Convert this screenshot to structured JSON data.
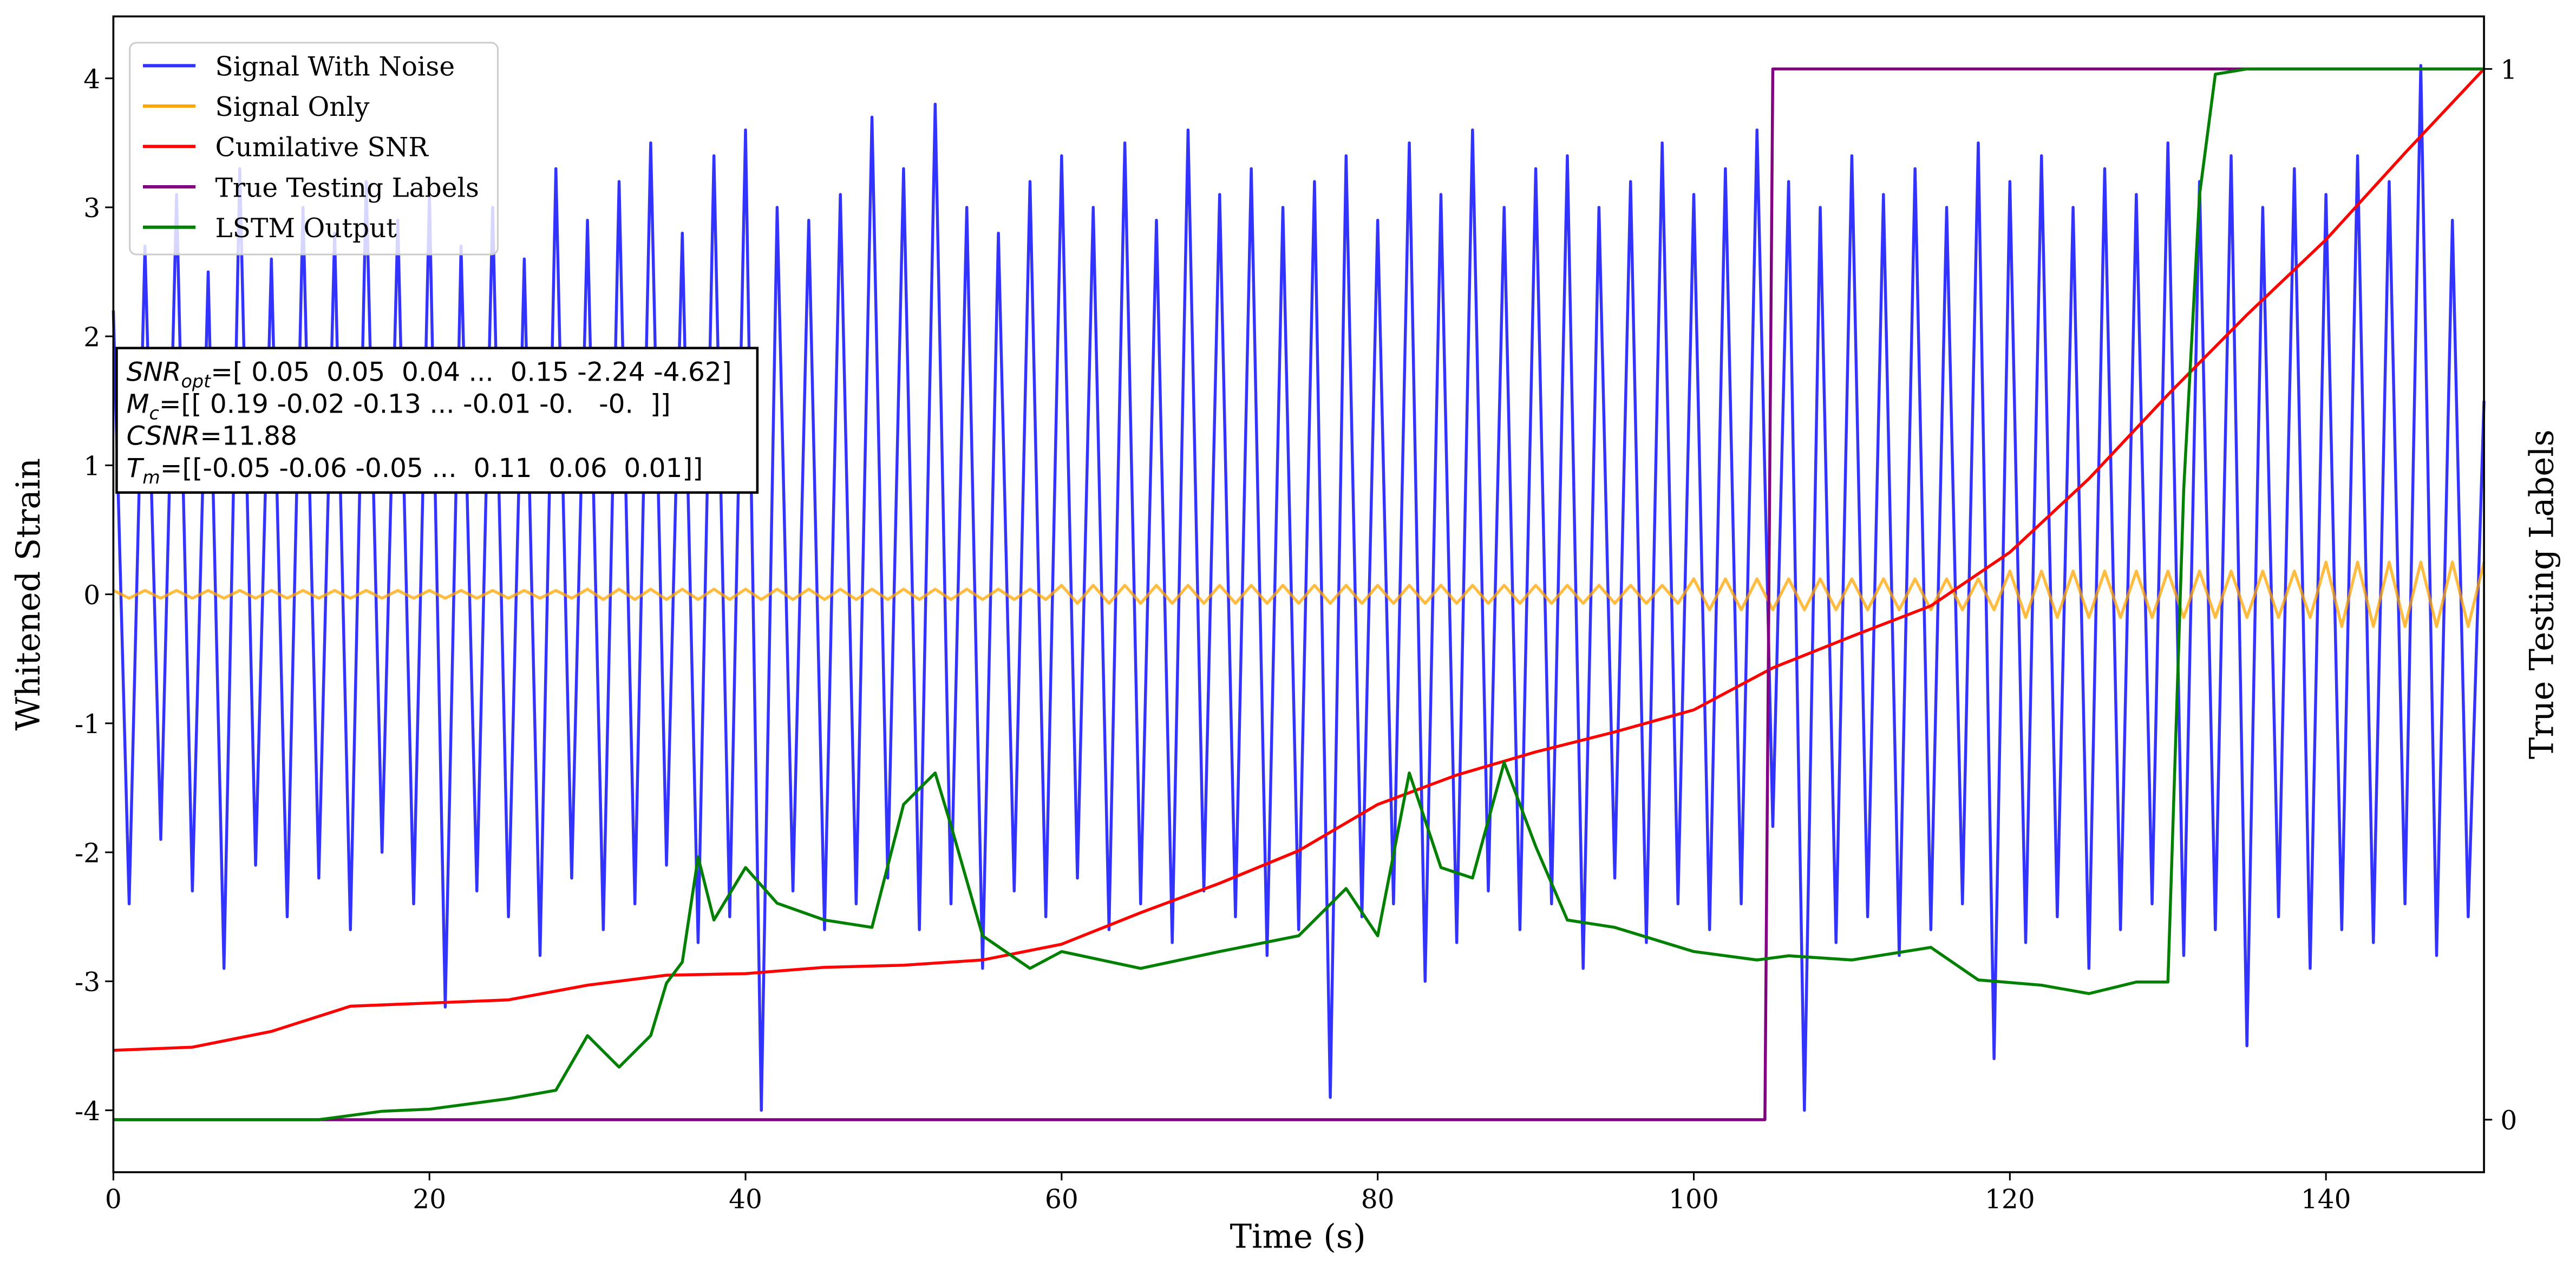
{
  "chart_data": {
    "type": "line",
    "xlabel": "Time (s)",
    "ylabel": "Whitened Strain",
    "y2label": "True Testing Labels",
    "xlim": [
      0,
      150
    ],
    "ylim": [
      -4.48,
      4.48
    ],
    "y2lim": [
      -0.05,
      1.05
    ],
    "xticks": [
      0,
      20,
      40,
      60,
      80,
      100,
      120,
      140
    ],
    "yticks": [
      -4,
      -3,
      -2,
      -1,
      0,
      1,
      2,
      3,
      4
    ],
    "y2ticks": [
      0,
      1
    ],
    "legend": "upper left",
    "series": [
      {
        "name": "Signal With Noise",
        "color": "#3333ff",
        "x": [
          0,
          1,
          2,
          3,
          4,
          5,
          6,
          7,
          8,
          9,
          10,
          11,
          12,
          13,
          14,
          15,
          16,
          17,
          18,
          19,
          20,
          21,
          22,
          23,
          24,
          25,
          26,
          27,
          28,
          29,
          30,
          31,
          32,
          33,
          34,
          35,
          36,
          37,
          38,
          39,
          40,
          41,
          42,
          43,
          44,
          45,
          46,
          47,
          48,
          49,
          50,
          51,
          52,
          53,
          54,
          55,
          56,
          57,
          58,
          59,
          60,
          61,
          62,
          63,
          64,
          65,
          66,
          67,
          68,
          69,
          70,
          71,
          72,
          73,
          74,
          75,
          76,
          77,
          78,
          79,
          80,
          81,
          82,
          83,
          84,
          85,
          86,
          87,
          88,
          89,
          90,
          91,
          92,
          93,
          94,
          95,
          96,
          97,
          98,
          99,
          100,
          101,
          102,
          103,
          104,
          105,
          106,
          107,
          108,
          109,
          110,
          111,
          112,
          113,
          114,
          115,
          116,
          117,
          118,
          119,
          120,
          121,
          122,
          123,
          124,
          125,
          126,
          127,
          128,
          129,
          130,
          131,
          132,
          133,
          134,
          135,
          136,
          137,
          138,
          139,
          140,
          141,
          142,
          143,
          144,
          145,
          146,
          147,
          148,
          149,
          150
        ],
        "values": [
          2.2,
          -2.4,
          2.7,
          -1.9,
          3.1,
          -2.3,
          2.5,
          -2.9,
          3.3,
          -2.1,
          2.6,
          -2.5,
          3.0,
          -2.2,
          2.8,
          -2.6,
          3.2,
          -2.0,
          2.9,
          -2.4,
          3.1,
          -3.2,
          2.7,
          -2.3,
          3.0,
          -2.5,
          2.6,
          -2.8,
          3.3,
          -2.2,
          2.9,
          -2.6,
          3.2,
          -2.4,
          3.5,
          -2.1,
          2.8,
          -2.7,
          3.4,
          -2.5,
          3.6,
          -4.0,
          3.0,
          -2.3,
          2.9,
          -2.6,
          3.1,
          -2.4,
          3.7,
          -2.2,
          3.3,
          -2.6,
          3.8,
          -2.4,
          3.0,
          -2.9,
          2.8,
          -2.3,
          3.2,
          -2.5,
          3.4,
          -2.2,
          3.0,
          -2.6,
          3.5,
          -2.4,
          2.9,
          -2.7,
          3.6,
          -2.3,
          3.1,
          -2.5,
          3.3,
          -2.8,
          3.0,
          -2.6,
          3.2,
          -3.9,
          3.4,
          -2.5,
          2.9,
          -2.4,
          3.5,
          -3.0,
          3.1,
          -2.7,
          3.6,
          -2.3,
          3.0,
          -2.6,
          3.3,
          -2.4,
          3.4,
          -2.9,
          3.0,
          -2.2,
          3.2,
          -2.7,
          3.5,
          -2.4,
          3.1,
          -2.6,
          3.3,
          -2.4,
          3.6,
          -1.8,
          3.2,
          -4.0,
          3.0,
          -2.7,
          3.4,
          -2.5,
          3.1,
          -2.8,
          3.3,
          -2.6,
          3.0,
          -2.4,
          3.5,
          -3.6,
          3.2,
          -2.7,
          3.4,
          -2.5,
          3.0,
          -2.9,
          3.3,
          -2.6,
          3.1,
          -2.4,
          3.5,
          -2.8,
          3.2,
          -2.6,
          3.4,
          -3.5,
          3.0,
          -2.5,
          3.3,
          -2.9,
          3.1,
          -2.6,
          3.4,
          -2.7,
          3.2,
          -2.4,
          4.1,
          -2.8,
          2.9,
          -2.5,
          1.5
        ]
      },
      {
        "name": "Signal Only",
        "color": "#ffa500",
        "x": [
          0,
          1,
          2,
          3,
          4,
          5,
          6,
          7,
          8,
          9,
          10,
          11,
          12,
          13,
          14,
          15,
          16,
          17,
          18,
          19,
          20,
          21,
          22,
          23,
          24,
          25,
          26,
          27,
          28,
          29,
          30,
          31,
          32,
          33,
          34,
          35,
          36,
          37,
          38,
          39,
          40,
          41,
          42,
          43,
          44,
          45,
          46,
          47,
          48,
          49,
          50,
          51,
          52,
          53,
          54,
          55,
          56,
          57,
          58,
          59,
          60,
          61,
          62,
          63,
          64,
          65,
          66,
          67,
          68,
          69,
          70,
          71,
          72,
          73,
          74,
          75,
          76,
          77,
          78,
          79,
          80,
          81,
          82,
          83,
          84,
          85,
          86,
          87,
          88,
          89,
          90,
          91,
          92,
          93,
          94,
          95,
          96,
          97,
          98,
          99,
          100,
          101,
          102,
          103,
          104,
          105,
          106,
          107,
          108,
          109,
          110,
          111,
          112,
          113,
          114,
          115,
          116,
          117,
          118,
          119,
          120,
          121,
          122,
          123,
          124,
          125,
          126,
          127,
          128,
          129,
          130,
          131,
          132,
          133,
          134,
          135,
          136,
          137,
          138,
          139,
          140,
          141,
          142,
          143,
          144,
          145,
          146,
          147,
          148,
          149,
          150
        ],
        "values": [
          0.03,
          -0.03,
          0.03,
          -0.03,
          0.03,
          -0.03,
          0.03,
          -0.03,
          0.03,
          -0.03,
          0.03,
          -0.03,
          0.03,
          -0.03,
          0.03,
          -0.03,
          0.03,
          -0.03,
          0.03,
          -0.03,
          0.03,
          -0.03,
          0.03,
          -0.03,
          0.03,
          -0.03,
          0.03,
          -0.03,
          0.03,
          -0.03,
          0.04,
          -0.04,
          0.04,
          -0.04,
          0.04,
          -0.04,
          0.04,
          -0.04,
          0.04,
          -0.04,
          0.04,
          -0.04,
          0.04,
          -0.04,
          0.04,
          -0.04,
          0.04,
          -0.04,
          0.04,
          -0.04,
          0.04,
          -0.04,
          0.04,
          -0.04,
          0.04,
          -0.04,
          0.04,
          -0.04,
          0.04,
          -0.04,
          0.07,
          -0.07,
          0.07,
          -0.07,
          0.07,
          -0.07,
          0.07,
          -0.07,
          0.07,
          -0.07,
          0.07,
          -0.07,
          0.07,
          -0.07,
          0.07,
          -0.07,
          0.07,
          -0.07,
          0.07,
          -0.07,
          0.07,
          -0.07,
          0.07,
          -0.07,
          0.07,
          -0.07,
          0.07,
          -0.07,
          0.07,
          -0.07,
          0.07,
          -0.07,
          0.07,
          -0.07,
          0.07,
          -0.07,
          0.07,
          -0.07,
          0.07,
          -0.07,
          0.12,
          -0.12,
          0.12,
          -0.12,
          0.12,
          -0.12,
          0.12,
          -0.12,
          0.12,
          -0.12,
          0.12,
          -0.12,
          0.12,
          -0.12,
          0.12,
          -0.12,
          0.12,
          -0.12,
          0.12,
          -0.12,
          0.18,
          -0.18,
          0.18,
          -0.18,
          0.18,
          -0.18,
          0.18,
          -0.18,
          0.18,
          -0.18,
          0.18,
          -0.18,
          0.18,
          -0.18,
          0.18,
          -0.18,
          0.18,
          -0.18,
          0.18,
          -0.18,
          0.25,
          -0.25,
          0.25,
          -0.25,
          0.25,
          -0.25,
          0.25,
          -0.25,
          0.25,
          -0.25,
          0.25
        ]
      },
      {
        "name": "Cumilative SNR",
        "color": "#ff0000",
        "axis": "y2",
        "x": [
          0,
          5,
          10,
          15,
          20,
          25,
          30,
          35,
          40,
          45,
          50,
          55,
          60,
          65,
          70,
          75,
          80,
          85,
          90,
          95,
          100,
          105,
          110,
          115,
          120,
          125,
          130,
          135,
          140,
          145,
          150
        ],
        "values": [
          0.066,
          0.069,
          0.084,
          0.108,
          0.111,
          0.114,
          0.128,
          0.1375,
          0.139,
          0.145,
          0.147,
          0.152,
          0.167,
          0.197,
          0.225,
          0.256,
          0.3,
          0.328,
          0.35,
          0.369,
          0.39,
          0.43,
          0.46,
          0.489,
          0.54,
          0.61,
          0.69,
          0.766,
          0.8375,
          0.92,
          1.0
        ]
      },
      {
        "name": "True Testing Labels",
        "color": "#800080",
        "axis": "y2",
        "x": [
          0,
          104.5,
          105,
          150
        ],
        "values": [
          0,
          0,
          1,
          1
        ]
      },
      {
        "name": "LSTM Output",
        "color": "#008000",
        "axis": "y2",
        "x": [
          0,
          13,
          15,
          17,
          20,
          25,
          28,
          30,
          32,
          34,
          35,
          36,
          37,
          38,
          40,
          42,
          45,
          48,
          50,
          52,
          53,
          55,
          58,
          60,
          65,
          70,
          75,
          78,
          80,
          82,
          84,
          86,
          88,
          90,
          92,
          95,
          100,
          104,
          106,
          110,
          115,
          118,
          122,
          125,
          128,
          130,
          131,
          132,
          133,
          135,
          150
        ],
        "values": [
          0,
          0,
          0.004,
          0.008,
          0.01,
          0.02,
          0.028,
          0.08,
          0.05,
          0.08,
          0.13,
          0.15,
          0.25,
          0.19,
          0.24,
          0.206,
          0.19,
          0.183,
          0.3,
          0.33,
          0.28,
          0.175,
          0.144,
          0.16,
          0.144,
          0.16,
          0.175,
          0.22,
          0.175,
          0.33,
          0.24,
          0.23,
          0.34,
          0.26,
          0.19,
          0.183,
          0.16,
          0.152,
          0.156,
          0.152,
          0.164,
          0.133,
          0.128,
          0.12,
          0.131,
          0.131,
          0.6,
          0.88,
          0.995,
          1.0,
          1.0
        ]
      }
    ],
    "annotation": [
      {
        "symbol": "SNR",
        "subscript": "opt",
        "text": "=[ 0.05  0.05  0.04 ...  0.15 -2.24 -4.62]"
      },
      {
        "symbol": "M",
        "subscript": "c",
        "text": "=[[ 0.19 -0.02 -0.13 ... -0.01 -0.   -0.  ]]"
      },
      {
        "symbol": "CSNR",
        "text": "=11.88"
      },
      {
        "symbol": "T",
        "subscript": "m",
        "text": "=[[-0.05 -0.06 -0.05 ...  0.11  0.06  0.01]]"
      }
    ]
  }
}
